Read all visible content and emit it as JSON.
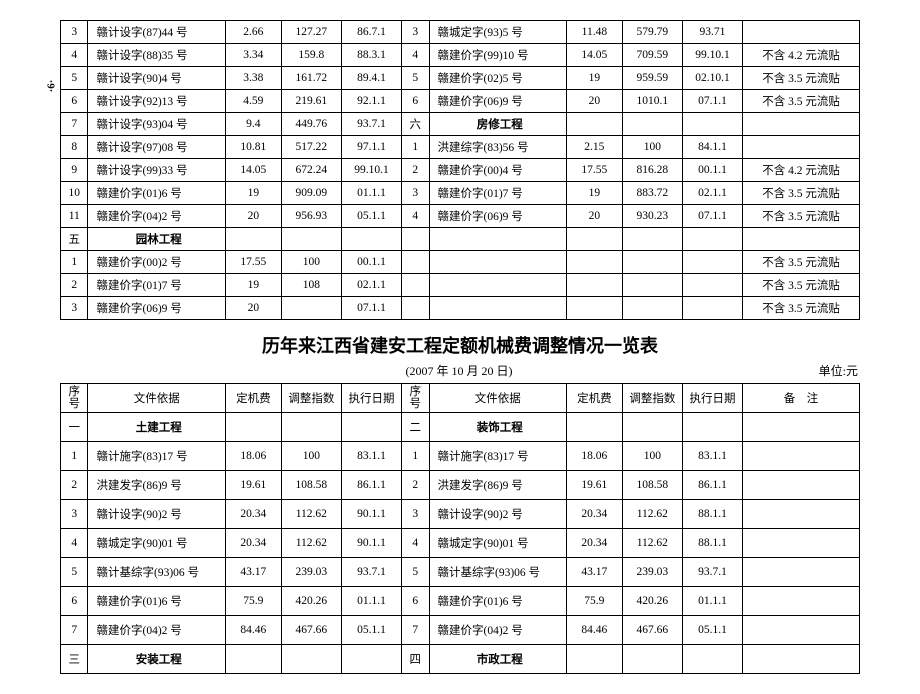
{
  "page_marker": "·6·",
  "table1": {
    "rows": [
      [
        "3",
        "赣计设字(87)44 号",
        "2.66",
        "127.27",
        "86.7.1",
        "3",
        "赣城定字(93)5 号",
        "11.48",
        "579.79",
        "93.71",
        ""
      ],
      [
        "4",
        "赣计设字(88)35 号",
        "3.34",
        "159.8",
        "88.3.1",
        "4",
        "赣建价字(99)10 号",
        "14.05",
        "709.59",
        "99.10.1",
        "不含 4.2 元流贴"
      ],
      [
        "5",
        "赣计设字(90)4 号",
        "3.38",
        "161.72",
        "89.4.1",
        "5",
        "赣建价字(02)5 号",
        "19",
        "959.59",
        "02.10.1",
        "不含 3.5 元流贴"
      ],
      [
        "6",
        "赣计设字(92)13 号",
        "4.59",
        "219.61",
        "92.1.1",
        "6",
        "赣建价字(06)9 号",
        "20",
        "1010.1",
        "07.1.1",
        "不含 3.5 元流贴"
      ],
      [
        "7",
        "赣计设字(93)04 号",
        "9.4",
        "449.76",
        "93.7.1",
        "六",
        "房修工程",
        "",
        "",
        "",
        ""
      ],
      [
        "8",
        "赣计设字(97)08 号",
        "10.81",
        "517.22",
        "97.1.1",
        "1",
        "洪建综字(83)56 号",
        "2.15",
        "100",
        "84.1.1",
        ""
      ],
      [
        "9",
        "赣计设字(99)33 号",
        "14.05",
        "672.24",
        "99.10.1",
        "2",
        "赣建价字(00)4 号",
        "17.55",
        "816.28",
        "00.1.1",
        "不含 4.2 元流贴"
      ],
      [
        "10",
        "赣建价字(01)6 号",
        "19",
        "909.09",
        "01.1.1",
        "3",
        "赣建价字(01)7 号",
        "19",
        "883.72",
        "02.1.1",
        "不含 3.5 元流贴"
      ],
      [
        "11",
        "赣建价字(04)2 号",
        "20",
        "956.93",
        "05.1.1",
        "4",
        "赣建价字(06)9 号",
        "20",
        "930.23",
        "07.1.1",
        "不含 3.5 元流贴"
      ],
      [
        "五",
        "园林工程",
        "",
        "",
        "",
        "",
        "",
        "",
        "",
        "",
        ""
      ],
      [
        "1",
        "赣建价字(00)2 号",
        "17.55",
        "100",
        "00.1.1",
        "",
        "",
        "",
        "",
        "",
        "不含 3.5 元流贴"
      ],
      [
        "2",
        "赣建价字(01)7 号",
        "19",
        "108",
        "02.1.1",
        "",
        "",
        "",
        "",
        "",
        "不含 3.5 元流贴"
      ],
      [
        "3",
        "赣建价字(06)9 号",
        "20",
        "",
        "07.1.1",
        "",
        "",
        "",
        "",
        "",
        "不含 3.5 元流贴"
      ]
    ],
    "bold_left_rows": [
      9
    ],
    "bold_right_rows": [
      4
    ]
  },
  "mid_title": "历年来江西省建安工程定额机械费调整情况一览表",
  "mid_date": "(2007 年 10 月 20 日)",
  "mid_unit": "单位:元",
  "table2": {
    "header": [
      "序号",
      "文件依据",
      "定机费",
      "调整指数",
      "执行日期",
      "序号",
      "文件依据",
      "定机费",
      "调整指数",
      "执行日期",
      "备　注"
    ],
    "rows": [
      [
        "一",
        "土建工程",
        "",
        "",
        "",
        "二",
        "装饰工程",
        "",
        "",
        "",
        ""
      ],
      [
        "1",
        "赣计施字(83)17 号",
        "18.06",
        "100",
        "83.1.1",
        "1",
        "赣计施字(83)17 号",
        "18.06",
        "100",
        "83.1.1",
        ""
      ],
      [
        "2",
        "洪建发字(86)9 号",
        "19.61",
        "108.58",
        "86.1.1",
        "2",
        "洪建发字(86)9 号",
        "19.61",
        "108.58",
        "86.1.1",
        ""
      ],
      [
        "3",
        "赣计设字(90)2 号",
        "20.34",
        "112.62",
        "90.1.1",
        "3",
        "赣计设字(90)2 号",
        "20.34",
        "112.62",
        "88.1.1",
        ""
      ],
      [
        "4",
        "赣城定字(90)01 号",
        "20.34",
        "112.62",
        "90.1.1",
        "4",
        "赣城定字(90)01 号",
        "20.34",
        "112.62",
        "88.1.1",
        ""
      ],
      [
        "5",
        "赣计基综字(93)06 号",
        "43.17",
        "239.03",
        "93.7.1",
        "5",
        "赣计基综字(93)06 号",
        "43.17",
        "239.03",
        "93.7.1",
        ""
      ],
      [
        "6",
        "赣建价字(01)6 号",
        "75.9",
        "420.26",
        "01.1.1",
        "6",
        "赣建价字(01)6 号",
        "75.9",
        "420.26",
        "01.1.1",
        ""
      ],
      [
        "7",
        "赣建价字(04)2 号",
        "84.46",
        "467.66",
        "05.1.1",
        "7",
        "赣建价字(04)2 号",
        "84.46",
        "467.66",
        "05.1.1",
        ""
      ],
      [
        "三",
        "安装工程",
        "",
        "",
        "",
        "四",
        "市政工程",
        "",
        "",
        "",
        ""
      ]
    ],
    "bold_rows": [
      0,
      8
    ]
  }
}
